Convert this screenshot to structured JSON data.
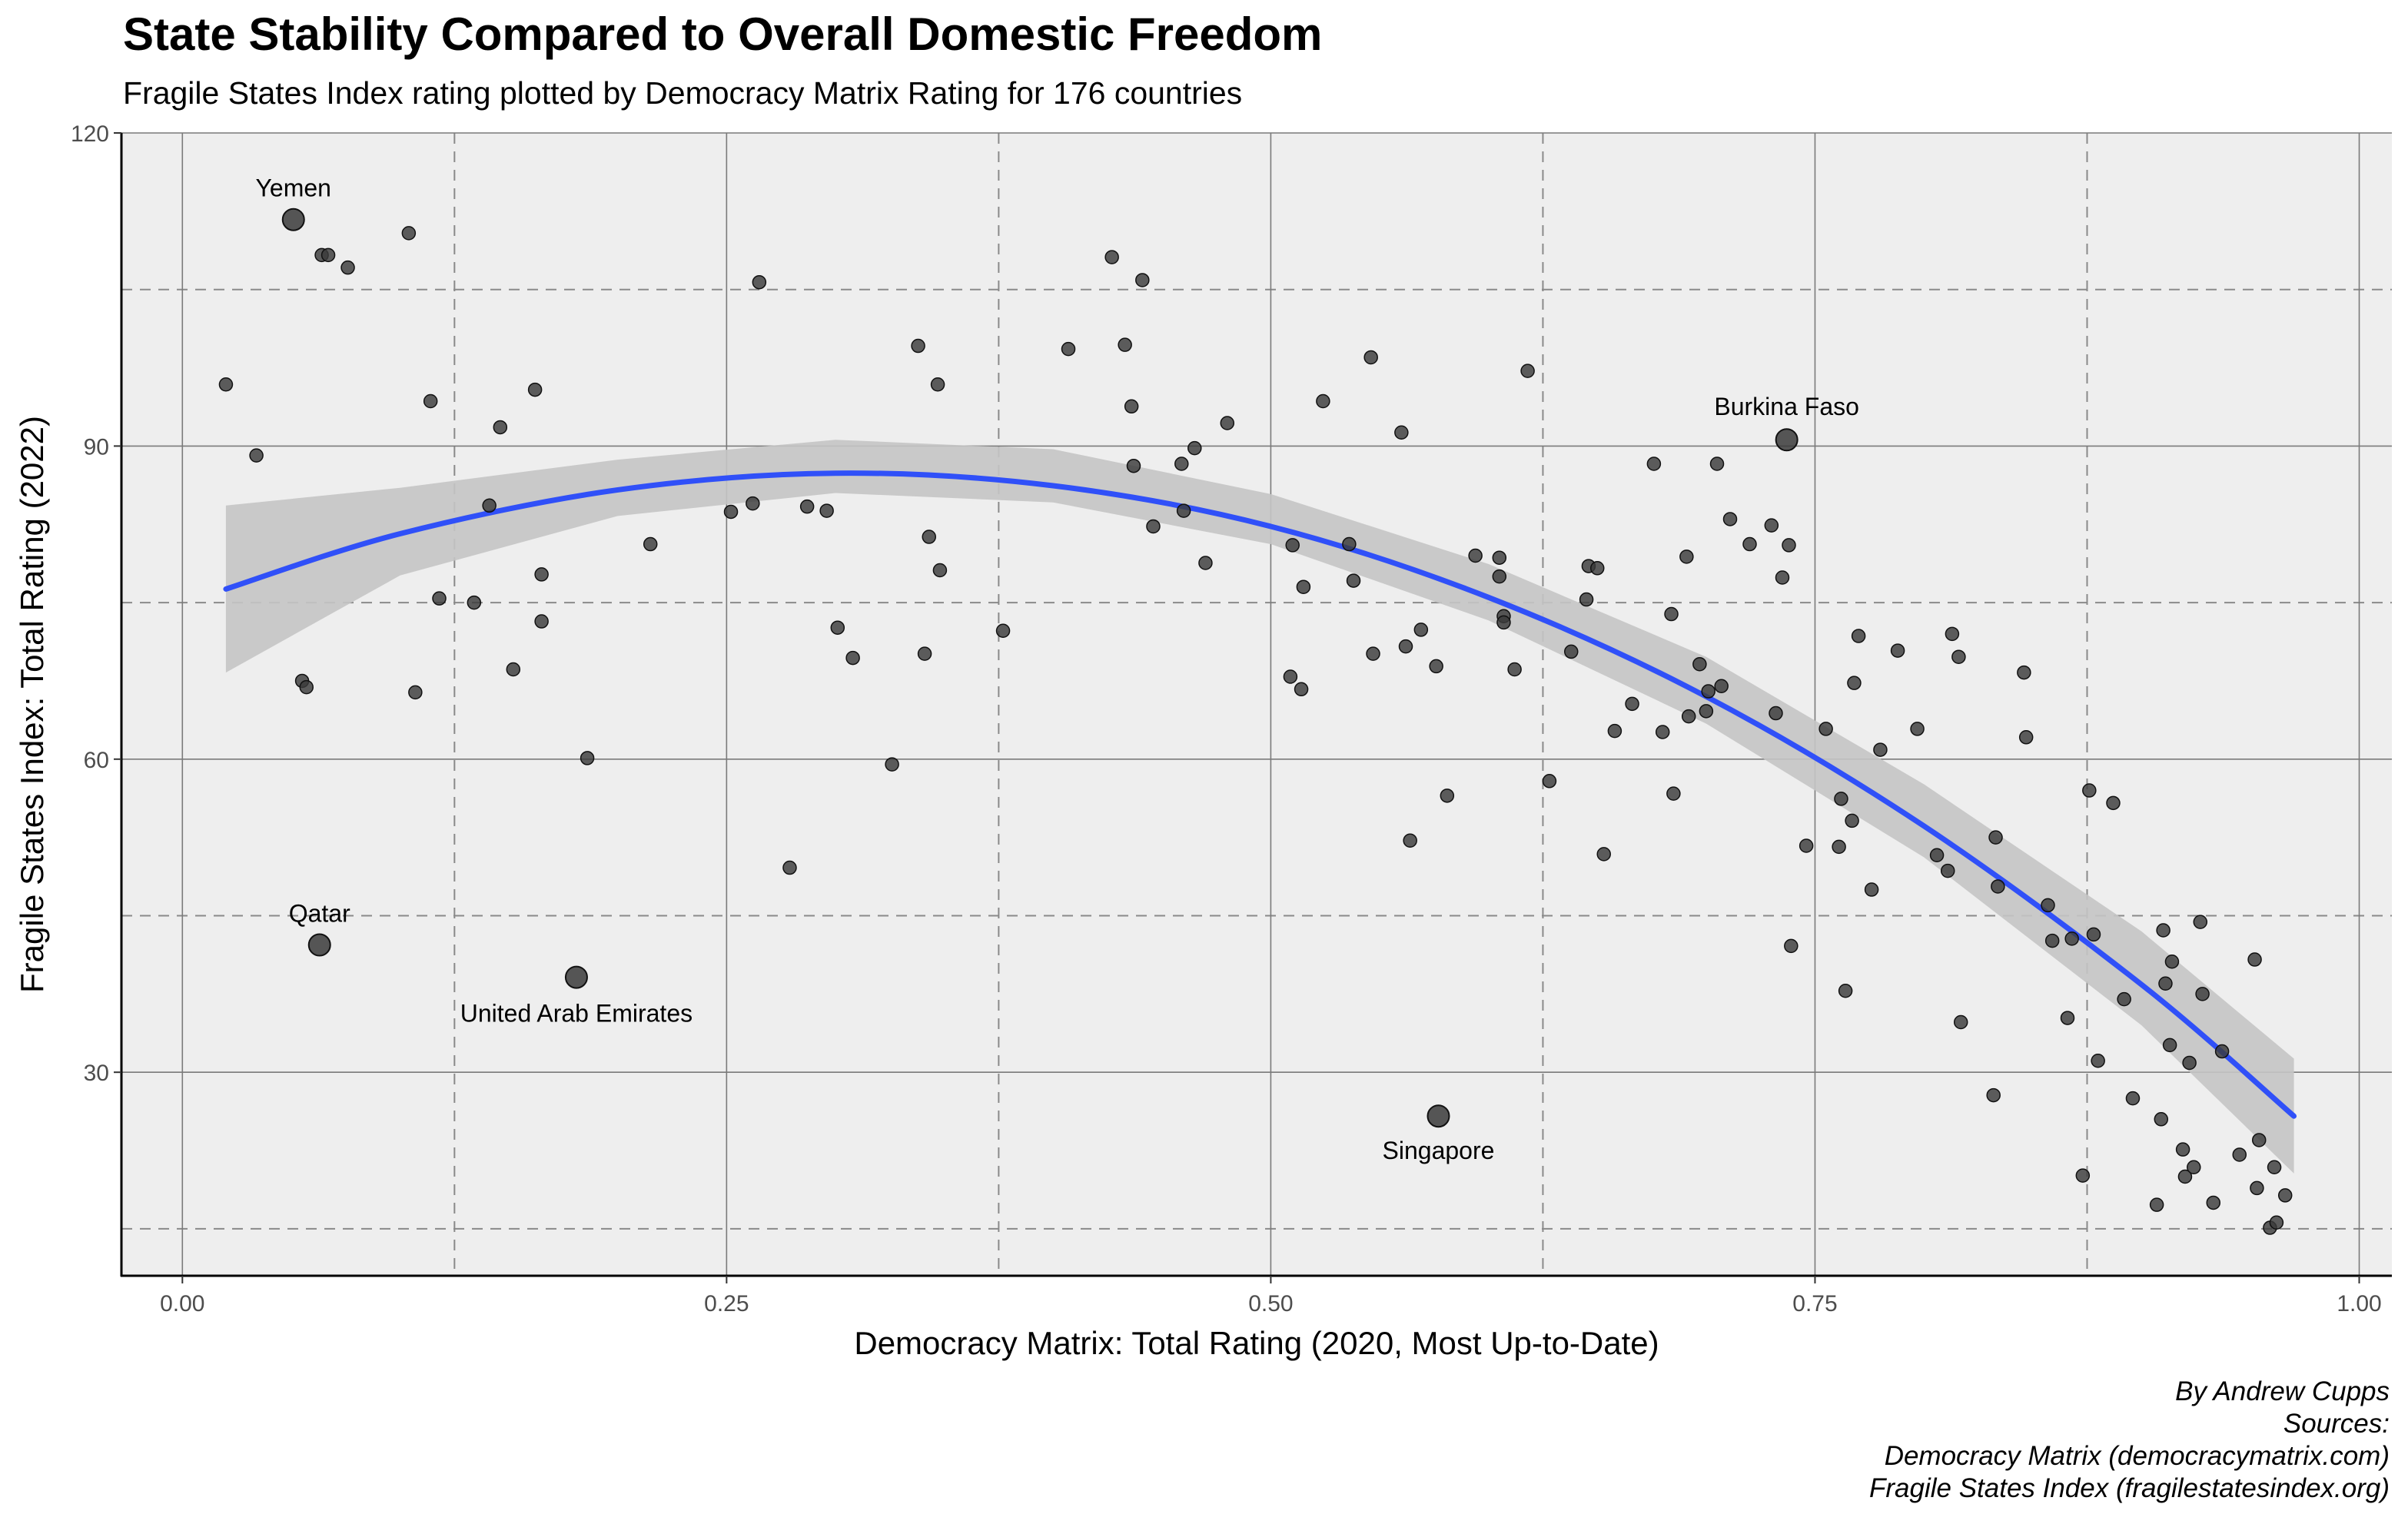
{
  "chart_data": {
    "type": "scatter",
    "title": "State Stability Compared to Overall Domestic Freedom",
    "subtitle": "Fragile States Index rating plotted by Democracy Matrix Rating for 176 countries",
    "xlabel": "Democracy Matrix: Total Rating (2020, Most Up-to-Date)",
    "ylabel": "Fragile States Index: Total Rating (2022)",
    "xlim": [
      -0.028,
      1.015
    ],
    "ylim": [
      10.5,
      120
    ],
    "x_ticks": [
      0.0,
      0.25,
      0.5,
      0.75,
      1.0
    ],
    "x_tick_labels": [
      "0.00",
      "0.25",
      "0.50",
      "0.75",
      "1.00"
    ],
    "y_ticks": [
      30,
      60,
      90,
      120
    ],
    "y_tick_labels": [
      "30",
      "60",
      "90",
      "120"
    ],
    "x_dashed_lines": [
      0.125,
      0.375,
      0.625,
      0.875
    ],
    "y_dashed_lines": [
      15,
      45,
      75,
      105
    ],
    "grid": true,
    "colors": {
      "panel_background": "#eeeeee",
      "point": "#3a3a3a",
      "trend_line": "#3050f8",
      "confidence_band": "#c4c4c4",
      "grid_major": "#7a7a7a",
      "grid_dashed": "#8a8a8a"
    },
    "trend": {
      "label": "",
      "x": [
        0.02,
        0.1,
        0.2,
        0.3,
        0.4,
        0.5,
        0.6,
        0.7,
        0.8,
        0.9,
        0.97
      ],
      "y": [
        76.3,
        81.6,
        85.8,
        87.4,
        86.2,
        82.3,
        75.5,
        66.0,
        53.6,
        38.4,
        25.8
      ],
      "lower": [
        68.3,
        77.6,
        83.3,
        85.5,
        84.6,
        80.6,
        73.3,
        63.4,
        50.6,
        34.5,
        20.3
      ],
      "upper": [
        84.3,
        86.0,
        88.7,
        90.6,
        89.7,
        85.4,
        78.7,
        69.8,
        57.6,
        43.5,
        31.3
      ]
    },
    "labeled_points": [
      {
        "name": "Yemen",
        "x": 0.051,
        "y": 111.7
      },
      {
        "name": "Burkina Faso",
        "x": 0.737,
        "y": 90.6
      },
      {
        "name": "Qatar",
        "x": 0.063,
        "y": 42.2
      },
      {
        "name": "United Arab Emirates",
        "x": 0.181,
        "y": 39.1
      },
      {
        "name": "Singapore",
        "x": 0.577,
        "y": 25.8
      }
    ],
    "points": [
      {
        "x": 0.02,
        "y": 95.9
      },
      {
        "x": 0.034,
        "y": 89.1
      },
      {
        "x": 0.055,
        "y": 67.5
      },
      {
        "x": 0.057,
        "y": 66.9
      },
      {
        "x": 0.064,
        "y": 108.3
      },
      {
        "x": 0.067,
        "y": 108.3
      },
      {
        "x": 0.076,
        "y": 107.1
      },
      {
        "x": 0.104,
        "y": 110.4
      },
      {
        "x": 0.107,
        "y": 66.4
      },
      {
        "x": 0.114,
        "y": 94.3
      },
      {
        "x": 0.118,
        "y": 75.4
      },
      {
        "x": 0.134,
        "y": 75.0
      },
      {
        "x": 0.141,
        "y": 84.3
      },
      {
        "x": 0.146,
        "y": 91.8
      },
      {
        "x": 0.152,
        "y": 68.6
      },
      {
        "x": 0.162,
        "y": 95.4
      },
      {
        "x": 0.165,
        "y": 77.7
      },
      {
        "x": 0.165,
        "y": 73.2
      },
      {
        "x": 0.186,
        "y": 60.1
      },
      {
        "x": 0.215,
        "y": 80.6
      },
      {
        "x": 0.252,
        "y": 83.7
      },
      {
        "x": 0.262,
        "y": 84.5
      },
      {
        "x": 0.265,
        "y": 105.7
      },
      {
        "x": 0.279,
        "y": 49.6
      },
      {
        "x": 0.287,
        "y": 84.2
      },
      {
        "x": 0.296,
        "y": 83.8
      },
      {
        "x": 0.301,
        "y": 72.6
      },
      {
        "x": 0.308,
        "y": 69.7
      },
      {
        "x": 0.326,
        "y": 59.5
      },
      {
        "x": 0.338,
        "y": 99.6
      },
      {
        "x": 0.341,
        "y": 70.1
      },
      {
        "x": 0.343,
        "y": 81.3
      },
      {
        "x": 0.347,
        "y": 95.9
      },
      {
        "x": 0.348,
        "y": 78.1
      },
      {
        "x": 0.377,
        "y": 72.3
      },
      {
        "x": 0.407,
        "y": 99.3
      },
      {
        "x": 0.427,
        "y": 108.1
      },
      {
        "x": 0.433,
        "y": 99.7
      },
      {
        "x": 0.436,
        "y": 93.8
      },
      {
        "x": 0.437,
        "y": 88.1
      },
      {
        "x": 0.441,
        "y": 105.9
      },
      {
        "x": 0.446,
        "y": 82.3
      },
      {
        "x": 0.459,
        "y": 88.3
      },
      {
        "x": 0.46,
        "y": 83.8
      },
      {
        "x": 0.465,
        "y": 89.8
      },
      {
        "x": 0.47,
        "y": 78.8
      },
      {
        "x": 0.48,
        "y": 92.2
      },
      {
        "x": 0.509,
        "y": 67.9
      },
      {
        "x": 0.51,
        "y": 80.5
      },
      {
        "x": 0.514,
        "y": 66.7
      },
      {
        "x": 0.515,
        "y": 76.5
      },
      {
        "x": 0.524,
        "y": 94.3
      },
      {
        "x": 0.536,
        "y": 80.6
      },
      {
        "x": 0.538,
        "y": 77.1
      },
      {
        "x": 0.546,
        "y": 98.5
      },
      {
        "x": 0.547,
        "y": 70.1
      },
      {
        "x": 0.56,
        "y": 91.3
      },
      {
        "x": 0.562,
        "y": 70.8
      },
      {
        "x": 0.564,
        "y": 52.2
      },
      {
        "x": 0.569,
        "y": 72.4
      },
      {
        "x": 0.576,
        "y": 68.9
      },
      {
        "x": 0.581,
        "y": 56.5
      },
      {
        "x": 0.594,
        "y": 79.5
      },
      {
        "x": 0.605,
        "y": 79.3
      },
      {
        "x": 0.605,
        "y": 77.5
      },
      {
        "x": 0.607,
        "y": 73.7
      },
      {
        "x": 0.607,
        "y": 73.1
      },
      {
        "x": 0.612,
        "y": 68.6
      },
      {
        "x": 0.618,
        "y": 97.2
      },
      {
        "x": 0.628,
        "y": 57.9
      },
      {
        "x": 0.638,
        "y": 70.3
      },
      {
        "x": 0.645,
        "y": 75.3
      },
      {
        "x": 0.646,
        "y": 78.5
      },
      {
        "x": 0.65,
        "y": 78.3
      },
      {
        "x": 0.653,
        "y": 50.9
      },
      {
        "x": 0.658,
        "y": 62.7
      },
      {
        "x": 0.666,
        "y": 65.3
      },
      {
        "x": 0.676,
        "y": 88.3
      },
      {
        "x": 0.68,
        "y": 62.6
      },
      {
        "x": 0.684,
        "y": 73.9
      },
      {
        "x": 0.685,
        "y": 56.7
      },
      {
        "x": 0.691,
        "y": 79.4
      },
      {
        "x": 0.692,
        "y": 64.1
      },
      {
        "x": 0.697,
        "y": 69.1
      },
      {
        "x": 0.7,
        "y": 64.6
      },
      {
        "x": 0.701,
        "y": 66.5
      },
      {
        "x": 0.705,
        "y": 88.3
      },
      {
        "x": 0.707,
        "y": 67.0
      },
      {
        "x": 0.711,
        "y": 83.0
      },
      {
        "x": 0.72,
        "y": 80.6
      },
      {
        "x": 0.73,
        "y": 82.4
      },
      {
        "x": 0.732,
        "y": 64.4
      },
      {
        "x": 0.735,
        "y": 77.4
      },
      {
        "x": 0.738,
        "y": 80.5
      },
      {
        "x": 0.739,
        "y": 42.1
      },
      {
        "x": 0.746,
        "y": 51.7
      },
      {
        "x": 0.755,
        "y": 62.9
      },
      {
        "x": 0.761,
        "y": 51.6
      },
      {
        "x": 0.762,
        "y": 56.2
      },
      {
        "x": 0.764,
        "y": 37.8
      },
      {
        "x": 0.767,
        "y": 54.1
      },
      {
        "x": 0.768,
        "y": 67.3
      },
      {
        "x": 0.77,
        "y": 71.8
      },
      {
        "x": 0.776,
        "y": 47.5
      },
      {
        "x": 0.78,
        "y": 60.9
      },
      {
        "x": 0.788,
        "y": 70.4
      },
      {
        "x": 0.797,
        "y": 62.9
      },
      {
        "x": 0.806,
        "y": 50.8
      },
      {
        "x": 0.811,
        "y": 49.3
      },
      {
        "x": 0.813,
        "y": 72.0
      },
      {
        "x": 0.816,
        "y": 69.8
      },
      {
        "x": 0.817,
        "y": 34.8
      },
      {
        "x": 0.832,
        "y": 27.8
      },
      {
        "x": 0.833,
        "y": 52.5
      },
      {
        "x": 0.834,
        "y": 47.8
      },
      {
        "x": 0.846,
        "y": 68.3
      },
      {
        "x": 0.847,
        "y": 62.1
      },
      {
        "x": 0.857,
        "y": 46.0
      },
      {
        "x": 0.859,
        "y": 42.6
      },
      {
        "x": 0.866,
        "y": 35.2
      },
      {
        "x": 0.868,
        "y": 42.8
      },
      {
        "x": 0.873,
        "y": 20.1
      },
      {
        "x": 0.876,
        "y": 57.0
      },
      {
        "x": 0.878,
        "y": 43.2
      },
      {
        "x": 0.88,
        "y": 31.1
      },
      {
        "x": 0.887,
        "y": 55.8
      },
      {
        "x": 0.892,
        "y": 37.0
      },
      {
        "x": 0.896,
        "y": 27.5
      },
      {
        "x": 0.907,
        "y": 17.3
      },
      {
        "x": 0.909,
        "y": 25.5
      },
      {
        "x": 0.91,
        "y": 43.6
      },
      {
        "x": 0.911,
        "y": 38.5
      },
      {
        "x": 0.913,
        "y": 32.6
      },
      {
        "x": 0.914,
        "y": 40.6
      },
      {
        "x": 0.919,
        "y": 22.6
      },
      {
        "x": 0.92,
        "y": 20.0
      },
      {
        "x": 0.922,
        "y": 30.9
      },
      {
        "x": 0.924,
        "y": 20.9
      },
      {
        "x": 0.928,
        "y": 37.5
      },
      {
        "x": 0.933,
        "y": 17.5
      },
      {
        "x": 0.937,
        "y": 32.0
      },
      {
        "x": 0.945,
        "y": 22.1
      },
      {
        "x": 0.952,
        "y": 40.8
      },
      {
        "x": 0.953,
        "y": 18.9
      },
      {
        "x": 0.954,
        "y": 23.5
      },
      {
        "x": 0.959,
        "y": 15.1
      },
      {
        "x": 0.961,
        "y": 20.9
      },
      {
        "x": 0.962,
        "y": 15.6
      },
      {
        "x": 0.966,
        "y": 18.2
      },
      {
        "x": 0.927,
        "y": 44.4
      }
    ]
  },
  "caption": {
    "author": "By Andrew Cupps",
    "sources_label": "Sources:",
    "source_1": "Democracy Matrix (democracymatrix.com)",
    "source_2": "Fragile States Index (fragilestatesindex.org)"
  }
}
